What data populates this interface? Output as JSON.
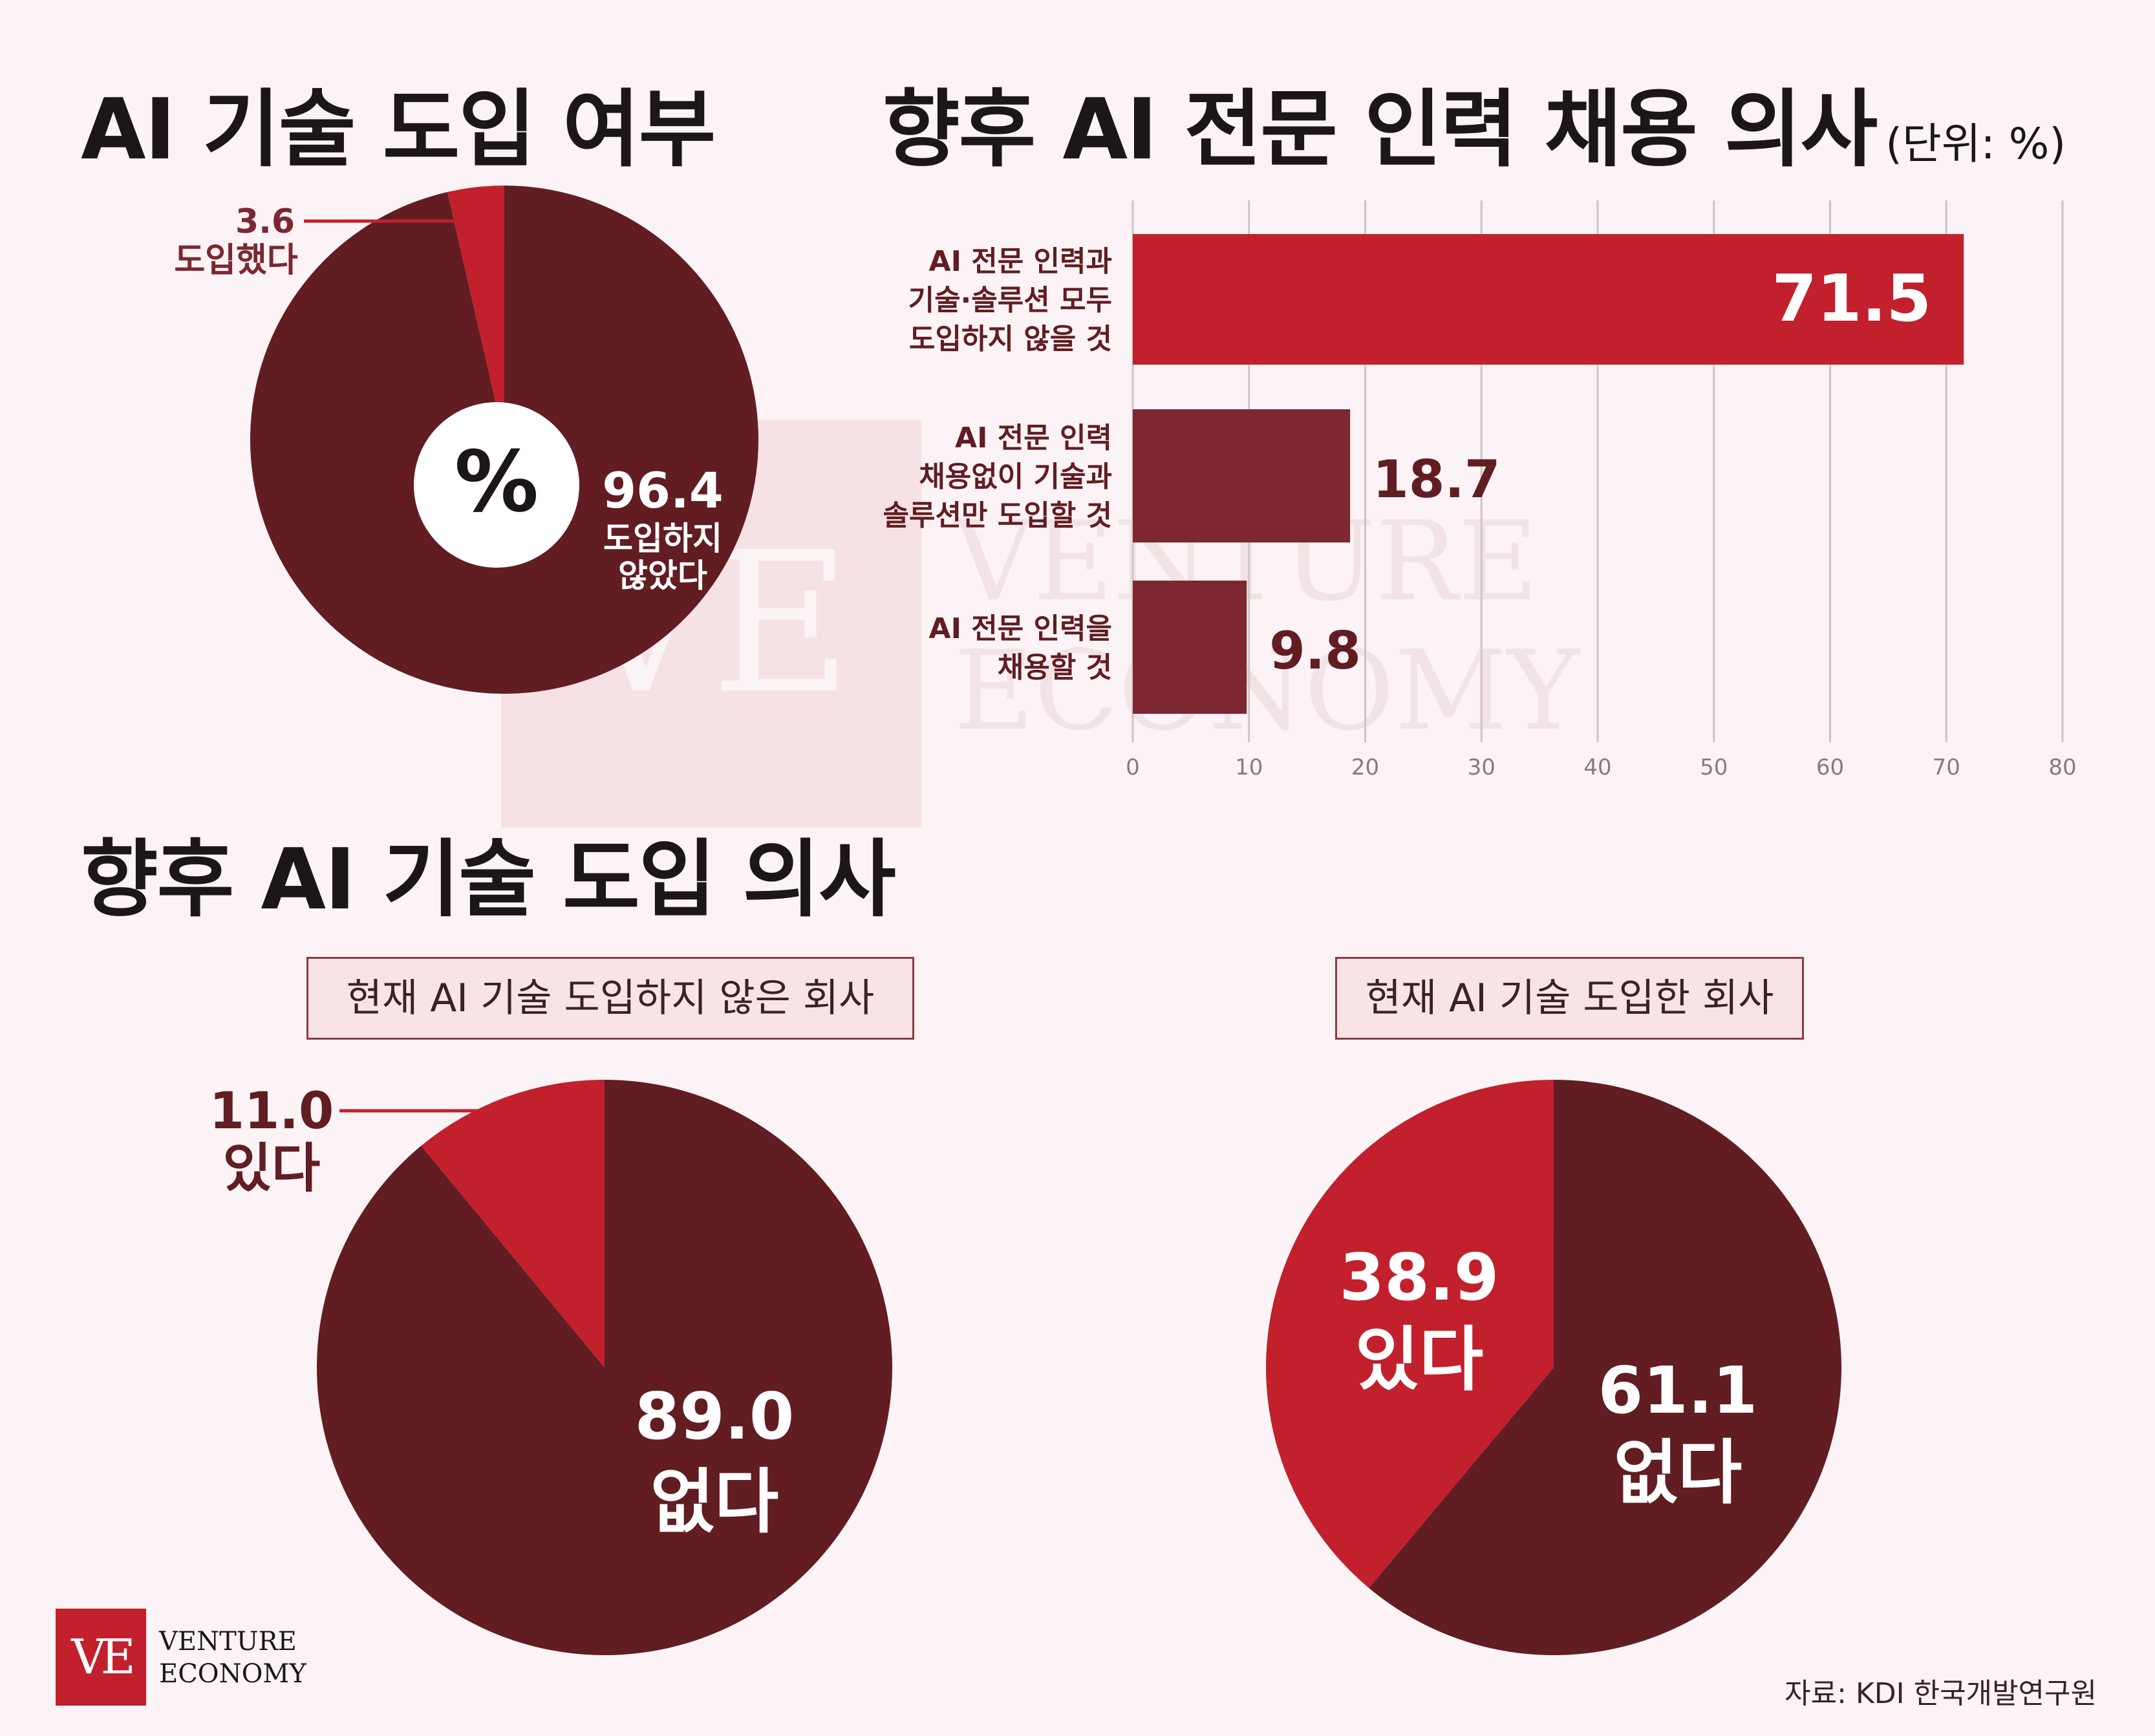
{
  "titles": {
    "adoption": "AI 기술 도입 여부",
    "hiring": "향후 AI 전문 인력 채용 의사",
    "hiring_unit": "(단위: %)",
    "intent": "향후 AI 기술 도입 의사"
  },
  "colors": {
    "dark": "#611d22",
    "red": "#c1202c",
    "bar_mid": "#7c2731"
  },
  "chart_data": [
    {
      "type": "pie",
      "title": "AI 기술 도입 여부",
      "center_label": "%",
      "slices": [
        {
          "label": "도입했다",
          "value": 3.6,
          "value_text": "3.6"
        },
        {
          "label": "도입하지 않았다",
          "value": 96.4,
          "value_text": "96.4"
        }
      ]
    },
    {
      "type": "bar",
      "orientation": "horizontal",
      "title": "향후 AI 전문 인력 채용 의사",
      "unit": "(단위: %)",
      "xlim": [
        0,
        80
      ],
      "ticks": [
        0,
        10,
        20,
        30,
        40,
        50,
        60,
        70,
        80
      ],
      "grid": true,
      "categories": [
        "AI 전문 인력과 기술·솔루션 모두 도입하지 않을 것",
        "AI 전문 인력 채용없이 기술과 솔루션만 도입할 것",
        "AI 전문 인력을 채용할 것"
      ],
      "category_lines": [
        [
          "AI 전문 인력과",
          "기술·솔루션 모두",
          "도입하지 않을 것"
        ],
        [
          "AI 전문 인력",
          "채용없이 기술과",
          "솔루션만 도입할 것"
        ],
        [
          "AI 전문 인력을",
          "채용할 것"
        ]
      ],
      "values": [
        71.5,
        18.7,
        9.8
      ],
      "value_texts": [
        "71.5",
        "18.7",
        "9.8"
      ]
    },
    {
      "type": "pie",
      "title": "현재 AI 기술 도입하지 않은 회사",
      "slices": [
        {
          "label": "있다",
          "value": 11.0,
          "value_text": "11.0"
        },
        {
          "label": "없다",
          "value": 89.0,
          "value_text": "89.0"
        }
      ]
    },
    {
      "type": "pie",
      "title": "현재 AI 기술 도입한 회사",
      "slices": [
        {
          "label": "없다",
          "value": 61.1,
          "value_text": "61.1"
        },
        {
          "label": "있다",
          "value": 38.9,
          "value_text": "38.9"
        }
      ]
    }
  ],
  "logo": {
    "mark": "VE",
    "line1": "VENTURE",
    "line2": "ECONOMY"
  },
  "source": "자료: KDI 한국개발연구원"
}
